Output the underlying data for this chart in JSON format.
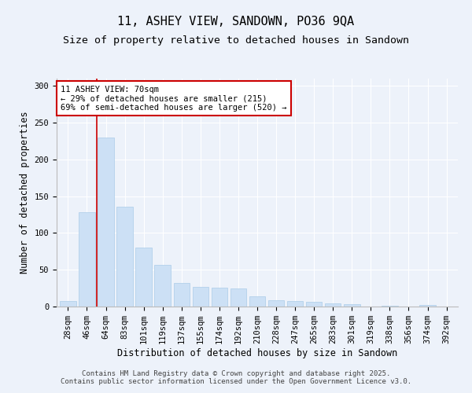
{
  "title": "11, ASHEY VIEW, SANDOWN, PO36 9QA",
  "subtitle": "Size of property relative to detached houses in Sandown",
  "xlabel": "Distribution of detached houses by size in Sandown",
  "ylabel": "Number of detached properties",
  "categories": [
    "28sqm",
    "46sqm",
    "64sqm",
    "83sqm",
    "101sqm",
    "119sqm",
    "137sqm",
    "155sqm",
    "174sqm",
    "192sqm",
    "210sqm",
    "228sqm",
    "247sqm",
    "265sqm",
    "283sqm",
    "301sqm",
    "319sqm",
    "338sqm",
    "356sqm",
    "374sqm",
    "392sqm"
  ],
  "values": [
    7,
    128,
    230,
    136,
    80,
    57,
    32,
    27,
    26,
    25,
    14,
    9,
    7,
    6,
    4,
    3,
    0,
    1,
    0,
    2,
    0
  ],
  "bar_color": "#cce0f5",
  "bar_edgecolor": "#aacce8",
  "vline_x": 1.5,
  "vline_color": "#cc0000",
  "annotation_text": "11 ASHEY VIEW: 70sqm\n← 29% of detached houses are smaller (215)\n69% of semi-detached houses are larger (520) →",
  "annotation_box_facecolor": "#ffffff",
  "annotation_box_edgecolor": "#cc0000",
  "ylim": [
    0,
    310
  ],
  "yticks": [
    0,
    50,
    100,
    150,
    200,
    250,
    300
  ],
  "background_color": "#edf2fa",
  "grid_color": "#ffffff",
  "footer_line1": "Contains HM Land Registry data © Crown copyright and database right 2025.",
  "footer_line2": "Contains public sector information licensed under the Open Government Licence v3.0.",
  "title_fontsize": 11,
  "subtitle_fontsize": 9.5,
  "xlabel_fontsize": 8.5,
  "ylabel_fontsize": 8.5,
  "tick_fontsize": 7.5,
  "annotation_fontsize": 7.5,
  "footer_fontsize": 6.5
}
